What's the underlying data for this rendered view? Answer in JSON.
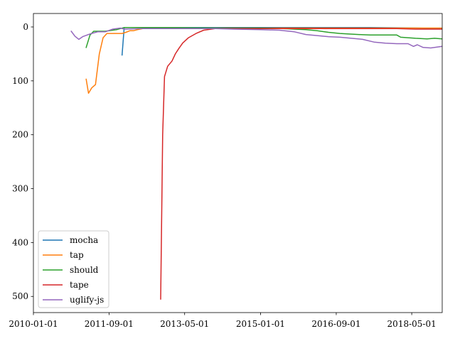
{
  "chart_data": {
    "type": "line",
    "title": "",
    "xlabel": "",
    "ylabel": "",
    "xlim": [
      "2010-01-01",
      "2019-01-01"
    ],
    "ylim": [
      530,
      -25
    ],
    "y_inverted": true,
    "grid": false,
    "legend_position": "lower-left",
    "x_ticks": [
      "2010-01-01",
      "2011-09-01",
      "2013-05-01",
      "2015-01-01",
      "2016-09-01",
      "2018-05-01"
    ],
    "y_ticks": [
      0,
      100,
      200,
      300,
      400,
      500
    ],
    "series": [
      {
        "name": "mocha",
        "color": "#1f77b4",
        "points": [
          [
            "2011-12-15",
            52
          ],
          [
            "2012-01-01",
            1
          ],
          [
            "2012-06-01",
            1
          ],
          [
            "2013-06-01",
            1
          ],
          [
            "2014-06-01",
            1
          ],
          [
            "2015-06-01",
            1
          ],
          [
            "2016-06-01",
            1
          ],
          [
            "2017-06-01",
            1
          ],
          [
            "2018-06-01",
            2
          ],
          [
            "2019-01-01",
            3
          ]
        ]
      },
      {
        "name": "tap",
        "color": "#ff7f0e",
        "points": [
          [
            "2011-03-01",
            97
          ],
          [
            "2011-03-20",
            123
          ],
          [
            "2011-04-15",
            113
          ],
          [
            "2011-05-15",
            107
          ],
          [
            "2011-06-15",
            50
          ],
          [
            "2011-07-15",
            20
          ],
          [
            "2011-08-15",
            12
          ],
          [
            "2011-09-15",
            12
          ],
          [
            "2011-11-01",
            12
          ],
          [
            "2011-12-15",
            12
          ],
          [
            "2012-01-15",
            10
          ],
          [
            "2012-02-15",
            7
          ],
          [
            "2012-03-15",
            7
          ],
          [
            "2012-04-15",
            5
          ],
          [
            "2012-06-01",
            3
          ],
          [
            "2013-01-01",
            2
          ],
          [
            "2014-01-01",
            2
          ],
          [
            "2015-01-01",
            2
          ],
          [
            "2016-01-01",
            2
          ],
          [
            "2017-01-01",
            2
          ],
          [
            "2018-01-01",
            2
          ],
          [
            "2019-01-01",
            2
          ]
        ]
      },
      {
        "name": "should",
        "color": "#2ca02c",
        "points": [
          [
            "2011-03-01",
            38
          ],
          [
            "2011-04-01",
            15
          ],
          [
            "2011-05-01",
            8
          ],
          [
            "2011-08-01",
            8
          ],
          [
            "2011-11-01",
            5
          ],
          [
            "2012-01-01",
            1
          ],
          [
            "2013-01-01",
            1
          ],
          [
            "2014-01-01",
            2
          ],
          [
            "2015-01-01",
            2
          ],
          [
            "2015-07-01",
            3
          ],
          [
            "2016-01-01",
            5
          ],
          [
            "2016-04-01",
            7
          ],
          [
            "2016-07-01",
            10
          ],
          [
            "2016-10-01",
            12
          ],
          [
            "2017-03-01",
            14
          ],
          [
            "2017-06-01",
            15
          ],
          [
            "2018-01-01",
            15
          ],
          [
            "2018-02-01",
            19
          ],
          [
            "2018-04-01",
            20
          ],
          [
            "2018-06-01",
            21
          ],
          [
            "2018-09-01",
            22
          ],
          [
            "2018-11-01",
            21
          ],
          [
            "2019-01-01",
            22
          ]
        ]
      },
      {
        "name": "tape",
        "color": "#d62728",
        "points": [
          [
            "2012-10-20",
            505
          ],
          [
            "2012-11-05",
            200
          ],
          [
            "2012-11-20",
            92
          ],
          [
            "2012-12-15",
            73
          ],
          [
            "2013-01-20",
            63
          ],
          [
            "2013-02-15",
            50
          ],
          [
            "2013-03-15",
            40
          ],
          [
            "2013-04-15",
            30
          ],
          [
            "2013-06-01",
            20
          ],
          [
            "2013-08-01",
            12
          ],
          [
            "2013-10-01",
            6
          ],
          [
            "2014-01-01",
            3
          ],
          [
            "2015-01-01",
            3
          ],
          [
            "2016-01-01",
            3
          ],
          [
            "2017-01-01",
            3
          ],
          [
            "2018-01-01",
            3
          ],
          [
            "2018-06-01",
            4
          ],
          [
            "2019-01-01",
            4
          ]
        ]
      },
      {
        "name": "uglify-js",
        "color": "#9467bd",
        "points": [
          [
            "2010-11-01",
            8
          ],
          [
            "2010-12-01",
            17
          ],
          [
            "2011-01-01",
            23
          ],
          [
            "2011-02-01",
            18
          ],
          [
            "2011-04-01",
            13
          ],
          [
            "2011-06-01",
            9
          ],
          [
            "2011-08-01",
            9
          ],
          [
            "2011-10-01",
            4
          ],
          [
            "2011-12-01",
            2
          ],
          [
            "2012-01-01",
            4
          ],
          [
            "2012-06-01",
            3
          ],
          [
            "2013-01-01",
            3
          ],
          [
            "2014-01-01",
            3
          ],
          [
            "2014-06-01",
            4
          ],
          [
            "2015-01-01",
            5
          ],
          [
            "2015-06-01",
            6
          ],
          [
            "2015-10-01",
            9
          ],
          [
            "2016-01-01",
            14
          ],
          [
            "2016-04-01",
            16
          ],
          [
            "2016-07-01",
            18
          ],
          [
            "2016-10-01",
            19
          ],
          [
            "2017-01-01",
            21
          ],
          [
            "2017-04-01",
            23
          ],
          [
            "2017-07-01",
            28
          ],
          [
            "2017-10-01",
            30
          ],
          [
            "2018-01-01",
            31
          ],
          [
            "2018-04-01",
            31
          ],
          [
            "2018-05-15",
            36
          ],
          [
            "2018-06-15",
            33
          ],
          [
            "2018-08-01",
            38
          ],
          [
            "2018-10-01",
            39
          ],
          [
            "2018-12-01",
            37
          ],
          [
            "2019-01-01",
            36
          ]
        ]
      }
    ]
  }
}
